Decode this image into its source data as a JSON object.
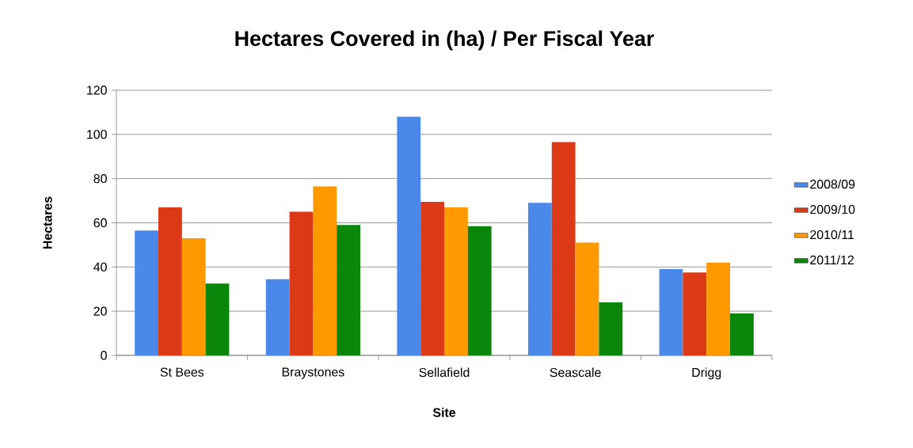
{
  "chart_data": {
    "type": "bar",
    "title": "Hectares Covered in (ha) / Per Fiscal Year",
    "xlabel": "Site",
    "ylabel": "Hectares",
    "categories": [
      "St Bees",
      "Braystones",
      "Sellafield",
      "Seascale",
      "Drigg"
    ],
    "series": [
      {
        "name": "2008/09",
        "color": "#4a89ea",
        "values": [
          56.5,
          34.5,
          108,
          69,
          39
        ]
      },
      {
        "name": "2009/10",
        "color": "#dc3a17",
        "values": [
          67,
          65,
          69.5,
          96.5,
          37.5
        ]
      },
      {
        "name": "2010/11",
        "color": "#ff9900",
        "values": [
          53,
          76.5,
          67,
          51,
          42
        ]
      },
      {
        "name": "2011/12",
        "color": "#0a860a",
        "values": [
          32.5,
          59,
          58.5,
          24,
          19
        ]
      }
    ],
    "ylim": [
      0,
      120
    ],
    "yticks": [
      0,
      20,
      40,
      60,
      80,
      100,
      120
    ],
    "grid": "y",
    "legend": "right"
  }
}
